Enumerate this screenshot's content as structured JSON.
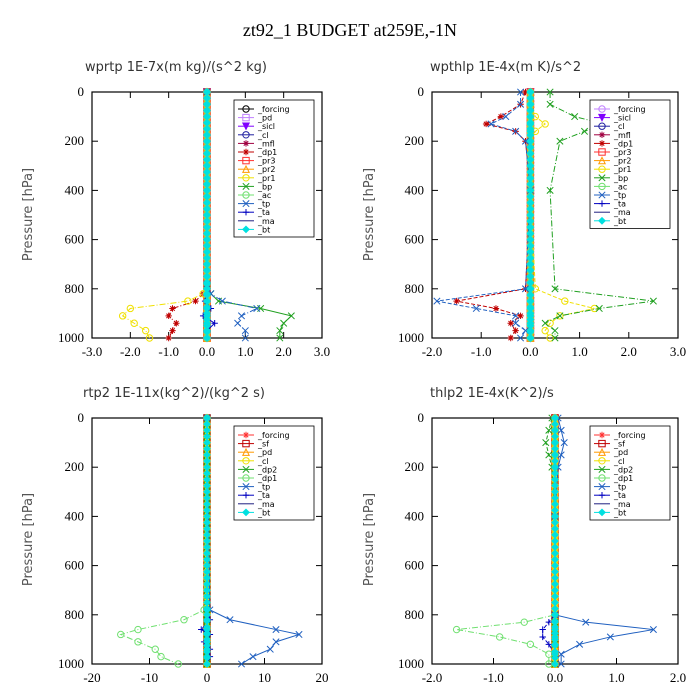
{
  "title": "zt92_1  BUDGET at259E,-1N",
  "chart_data": [
    {
      "type": "line",
      "title": "wprtp  1E-7x(m kg)/(s^2 kg)",
      "ylabel": "Pressure [hPa]",
      "xlim": [
        -3,
        3
      ],
      "ylim": [
        0,
        1000
      ],
      "y_inverted": true,
      "xticks": [
        "-3.0",
        "-2.0",
        "-1.0",
        "0.0",
        "1.0",
        "2.0",
        "3.0"
      ],
      "xtick_values": [
        -3,
        -2,
        -1,
        0,
        1,
        2,
        3
      ],
      "yticks": [
        "0",
        "200",
        "400",
        "600",
        "800",
        "1000"
      ],
      "ytick_values": [
        0,
        200,
        400,
        600,
        800,
        1000
      ],
      "legend_position": "top-right",
      "y_levels": [
        0,
        780,
        820,
        850,
        880,
        910,
        940,
        970,
        1000
      ],
      "series": [
        {
          "name": "_forcing",
          "color": "#000000",
          "marker": "o",
          "x": [
            0,
            0,
            0,
            0,
            0,
            0,
            0,
            0,
            0
          ]
        },
        {
          "name": "_pd",
          "color": "#c080ff",
          "marker": "s",
          "x": [
            0,
            0,
            0,
            0,
            0,
            0,
            0,
            0,
            0
          ]
        },
        {
          "name": "_sicl",
          "color": "#8000ff",
          "marker": "v",
          "x": [
            0,
            0,
            0,
            0,
            0,
            0,
            0,
            0,
            0
          ]
        },
        {
          "name": "_cl",
          "color": "#2020a0",
          "marker": "o",
          "x": [
            0,
            0,
            0,
            0,
            0,
            0,
            0,
            0,
            0
          ]
        },
        {
          "name": "_mfl",
          "color": "#a00040",
          "marker": "*",
          "x": [
            0,
            0,
            0,
            0,
            0,
            0,
            0,
            0,
            0
          ]
        },
        {
          "name": "_dp1",
          "color": "#c00000",
          "marker": "*",
          "x": [
            0,
            0,
            -0.1,
            -0.3,
            -0.9,
            -1.0,
            -0.8,
            -0.9,
            -1.0
          ]
        },
        {
          "name": "_pr3",
          "color": "#ff3030",
          "marker": "s",
          "x": [
            0,
            0,
            0,
            0,
            0,
            0,
            0,
            0,
            0
          ]
        },
        {
          "name": "_pr2",
          "color": "#ff9900",
          "marker": "^",
          "x": [
            0,
            0,
            0,
            0,
            0,
            0,
            0,
            0,
            0
          ]
        },
        {
          "name": "_pr1",
          "color": "#f0e000",
          "marker": "o",
          "x": [
            0,
            0,
            -0.1,
            -0.5,
            -2.0,
            -2.2,
            -1.9,
            -1.6,
            -1.5
          ]
        },
        {
          "name": "_bp",
          "color": "#20a020",
          "marker": "x",
          "x": [
            0,
            0,
            0.1,
            0.3,
            1.4,
            2.2,
            2.0,
            1.9,
            1.9
          ]
        },
        {
          "name": "_ac",
          "color": "#70e070",
          "marker": "o",
          "x": [
            0,
            0,
            0,
            0,
            0,
            0,
            0,
            0,
            0
          ]
        },
        {
          "name": "_tp",
          "color": "#2060c0",
          "marker": "x",
          "x": [
            0,
            0,
            0.1,
            0.4,
            1.3,
            0.9,
            0.8,
            1.0,
            1.0
          ]
        },
        {
          "name": "_ta",
          "color": "#0000c0",
          "marker": "+",
          "x": [
            0,
            0,
            0,
            -0.05,
            0.1,
            -0.1,
            0.2,
            0.0,
            0.0
          ]
        },
        {
          "name": "_ma",
          "color": "#202080",
          "marker": "-",
          "x": [
            0,
            0,
            0,
            0,
            0,
            0,
            0,
            0,
            0
          ]
        },
        {
          "name": "_bt",
          "color": "#00e0e0",
          "marker": "D",
          "x": [
            0,
            0,
            0,
            0,
            0,
            0,
            0,
            0,
            0
          ]
        }
      ]
    },
    {
      "type": "line",
      "title": "wpthlp  1E-4x(m K)/s^2",
      "ylabel": "Pressure [hPa]",
      "xlim": [
        -2,
        3
      ],
      "ylim": [
        0,
        1000
      ],
      "y_inverted": true,
      "xticks": [
        "-2.0",
        "-1.0",
        "0.0",
        "1.0",
        "2.0",
        "3.0"
      ],
      "xtick_values": [
        -2,
        -1,
        0,
        1,
        2,
        3
      ],
      "yticks": [
        "0",
        "200",
        "400",
        "600",
        "800",
        "1000"
      ],
      "ytick_values": [
        0,
        200,
        400,
        600,
        800,
        1000
      ],
      "legend_position": "top-right",
      "y_levels": [
        0,
        50,
        100,
        130,
        160,
        200,
        400,
        800,
        850,
        880,
        910,
        940,
        970,
        1000
      ],
      "series": [
        {
          "name": "_forcing",
          "color": "#c080ff",
          "marker": "o",
          "x": [
            0,
            0,
            0,
            0,
            0,
            0,
            0,
            0,
            0,
            0,
            0,
            0,
            0,
            0
          ]
        },
        {
          "name": "_sicl",
          "color": "#8000ff",
          "marker": "v",
          "x": [
            0,
            0,
            0,
            0,
            0,
            0,
            0,
            0,
            0,
            0,
            0,
            0,
            0,
            0
          ]
        },
        {
          "name": "_cl",
          "color": "#2020a0",
          "marker": "o",
          "x": [
            0,
            0,
            0,
            0,
            0,
            0,
            0,
            0,
            0,
            0,
            0,
            0,
            0,
            0
          ]
        },
        {
          "name": "_mfl",
          "color": "#a00040",
          "marker": "*",
          "x": [
            0,
            0,
            0,
            0,
            0,
            0,
            0,
            0,
            0,
            0,
            0,
            0,
            0,
            0
          ]
        },
        {
          "name": "_dp1",
          "color": "#c00000",
          "marker": "*",
          "x": [
            -0.1,
            -0.2,
            -0.6,
            -0.9,
            -0.3,
            -0.1,
            0,
            -0.1,
            -1.5,
            -0.7,
            -0.2,
            -0.4,
            -0.3,
            -0.4
          ]
        },
        {
          "name": "_pr3",
          "color": "#ff3030",
          "marker": "s",
          "x": [
            0,
            0,
            0,
            0,
            0,
            0,
            0,
            0,
            0,
            0,
            0,
            0,
            0,
            0
          ]
        },
        {
          "name": "_pr2",
          "color": "#ff9900",
          "marker": "^",
          "x": [
            0,
            0,
            0,
            0,
            0,
            0,
            0,
            0,
            0,
            0,
            0,
            0,
            0,
            0
          ]
        },
        {
          "name": "_pr1",
          "color": "#f0e000",
          "marker": "o",
          "x": [
            0,
            0,
            0.1,
            0.3,
            0.1,
            0,
            0,
            0.1,
            0.7,
            1.3,
            0.6,
            0.4,
            0.3,
            0.4
          ]
        },
        {
          "name": "_bp",
          "color": "#20a020",
          "marker": "x",
          "x": [
            0.4,
            0.4,
            0.9,
            1.5,
            1.1,
            0.6,
            0.4,
            0.5,
            2.5,
            1.4,
            0.6,
            0.3,
            0.5,
            0.5
          ]
        },
        {
          "name": "_ac",
          "color": "#70e070",
          "marker": "o",
          "x": [
            0,
            0,
            0,
            0,
            0,
            0,
            0,
            0,
            0,
            0,
            0,
            0,
            0,
            0
          ]
        },
        {
          "name": "_tp",
          "color": "#2060c0",
          "marker": "x",
          "x": [
            -0.2,
            -0.2,
            -0.5,
            -0.8,
            -0.3,
            -0.1,
            0,
            -0.1,
            -1.9,
            -1.1,
            -0.3,
            -0.3,
            -0.1,
            -0.2
          ]
        },
        {
          "name": "_ta",
          "color": "#0000c0",
          "marker": "+",
          "x": [
            0,
            0,
            0,
            0,
            0,
            0,
            0,
            0,
            0,
            0,
            0,
            0,
            0,
            0
          ]
        },
        {
          "name": "_ma",
          "color": "#202080",
          "marker": "-",
          "x": [
            0,
            0,
            0,
            0,
            0,
            0,
            0,
            0,
            0,
            0,
            0,
            0,
            0,
            0
          ]
        },
        {
          "name": "_bt",
          "color": "#00e0e0",
          "marker": "D",
          "x": [
            0,
            0,
            0,
            0,
            0,
            0,
            0,
            0,
            0,
            0,
            0,
            0,
            0,
            0
          ]
        }
      ]
    },
    {
      "type": "line",
      "title": "rtp2  1E-11x(kg^2)/(kg^2 s)",
      "ylabel": "Pressure [hPa]",
      "xlim": [
        -20,
        20
      ],
      "ylim": [
        0,
        1000
      ],
      "y_inverted": true,
      "xticks": [
        "-20",
        "-10",
        "0",
        "10",
        "20"
      ],
      "xtick_values": [
        -20,
        -10,
        0,
        10,
        20
      ],
      "yticks": [
        "0",
        "200",
        "400",
        "600",
        "800",
        "1000"
      ],
      "ytick_values": [
        0,
        200,
        400,
        600,
        800,
        1000
      ],
      "legend_position": "top-right",
      "y_levels": [
        0,
        780,
        820,
        860,
        880,
        910,
        940,
        970,
        1000
      ],
      "series": [
        {
          "name": "_forcing",
          "color": "#ff3030",
          "marker": "*",
          "x": [
            0,
            0,
            0,
            0,
            0,
            0,
            0,
            0,
            0
          ]
        },
        {
          "name": "_sf",
          "color": "#c00000",
          "marker": "s",
          "x": [
            0,
            0,
            0,
            0,
            0,
            0,
            0,
            0,
            0
          ]
        },
        {
          "name": "_pd",
          "color": "#ff9900",
          "marker": "^",
          "x": [
            0,
            0,
            0,
            0,
            0,
            0,
            0,
            0,
            0
          ]
        },
        {
          "name": "_cl",
          "color": "#f0e000",
          "marker": "o",
          "x": [
            0,
            0,
            0,
            0,
            0,
            0,
            0,
            0,
            0
          ]
        },
        {
          "name": "_dp2",
          "color": "#20a020",
          "marker": "x",
          "x": [
            0,
            0,
            0,
            0,
            0,
            0,
            0,
            0,
            0
          ]
        },
        {
          "name": "_dp1",
          "color": "#70e070",
          "marker": "o",
          "x": [
            0,
            -0.5,
            -4,
            -12,
            -15,
            -12,
            -9,
            -8,
            -5
          ]
        },
        {
          "name": "_tp",
          "color": "#2060c0",
          "marker": "x",
          "x": [
            0,
            0.5,
            4,
            12,
            16,
            12,
            11,
            8,
            6
          ]
        },
        {
          "name": "_ta",
          "color": "#0000c0",
          "marker": "+",
          "x": [
            0,
            0,
            0.5,
            -1,
            0.5,
            -0.5,
            0.5,
            0.5,
            0
          ]
        },
        {
          "name": "_ma",
          "color": "#202080",
          "marker": "-",
          "x": [
            0,
            0,
            0,
            0,
            0,
            0,
            0,
            0,
            0
          ]
        },
        {
          "name": "_bt",
          "color": "#00e0e0",
          "marker": "D",
          "x": [
            0,
            0,
            0,
            0,
            0,
            0,
            0,
            0,
            0
          ]
        }
      ]
    },
    {
      "type": "line",
      "title": "thlp2  1E-4x(K^2)/s",
      "ylabel": "Pressure [hPa]",
      "xlim": [
        -2,
        2
      ],
      "ylim": [
        0,
        1000
      ],
      "y_inverted": true,
      "xticks": [
        "-2.0",
        "-1.0",
        "0.0",
        "1.0",
        "2.0"
      ],
      "xtick_values": [
        -2,
        -1,
        0,
        1,
        2
      ],
      "yticks": [
        "0",
        "200",
        "400",
        "600",
        "800",
        "1000"
      ],
      "ytick_values": [
        0,
        200,
        400,
        600,
        800,
        1000
      ],
      "legend_position": "top-right",
      "y_levels": [
        0,
        50,
        100,
        150,
        200,
        400,
        800,
        830,
        860,
        890,
        920,
        960,
        1000
      ],
      "series": [
        {
          "name": "_forcing",
          "color": "#ff3030",
          "marker": "*",
          "x": [
            0,
            0,
            0,
            0,
            0,
            0,
            0,
            0,
            0,
            0,
            0,
            0,
            0
          ]
        },
        {
          "name": "_sf",
          "color": "#c00000",
          "marker": "s",
          "x": [
            0,
            0,
            0,
            0,
            0,
            0,
            0,
            0,
            0,
            0,
            0,
            0,
            0
          ]
        },
        {
          "name": "_pd",
          "color": "#ff9900",
          "marker": "^",
          "x": [
            0,
            0,
            0,
            0,
            0,
            0,
            0,
            0,
            0,
            0,
            0,
            0,
            0
          ]
        },
        {
          "name": "_cl",
          "color": "#f0e000",
          "marker": "o",
          "x": [
            0,
            0,
            0,
            0,
            0,
            0,
            0,
            0,
            0,
            0,
            0,
            0,
            0
          ]
        },
        {
          "name": "_dp2",
          "color": "#20a020",
          "marker": "x",
          "x": [
            -0.05,
            -0.1,
            -0.15,
            -0.1,
            -0.05,
            0,
            0,
            0,
            0,
            0,
            0,
            0,
            0
          ]
        },
        {
          "name": "_dp1",
          "color": "#70e070",
          "marker": "o",
          "x": [
            0,
            0,
            0,
            0,
            0,
            0,
            0,
            -0.5,
            -1.6,
            -0.9,
            -0.4,
            -0.1,
            -0.1
          ]
        },
        {
          "name": "_tp",
          "color": "#2060c0",
          "marker": "x",
          "x": [
            0.05,
            0.1,
            0.15,
            0.1,
            0.05,
            0,
            0,
            0.5,
            1.6,
            0.9,
            0.4,
            0.1,
            0.1
          ]
        },
        {
          "name": "_ta",
          "color": "#0000c0",
          "marker": "+",
          "x": [
            0,
            0,
            0,
            0,
            0,
            0,
            0,
            -0.1,
            -0.2,
            -0.2,
            -0.1,
            0,
            0
          ]
        },
        {
          "name": "_ma",
          "color": "#202080",
          "marker": "-",
          "x": [
            0,
            0,
            0,
            0,
            0,
            0,
            0,
            0,
            0,
            0,
            0,
            0,
            0
          ]
        },
        {
          "name": "_bt",
          "color": "#00e0e0",
          "marker": "D",
          "x": [
            0,
            0,
            0,
            0,
            0,
            0,
            0,
            0,
            0,
            0,
            0,
            0,
            0
          ]
        }
      ]
    }
  ]
}
